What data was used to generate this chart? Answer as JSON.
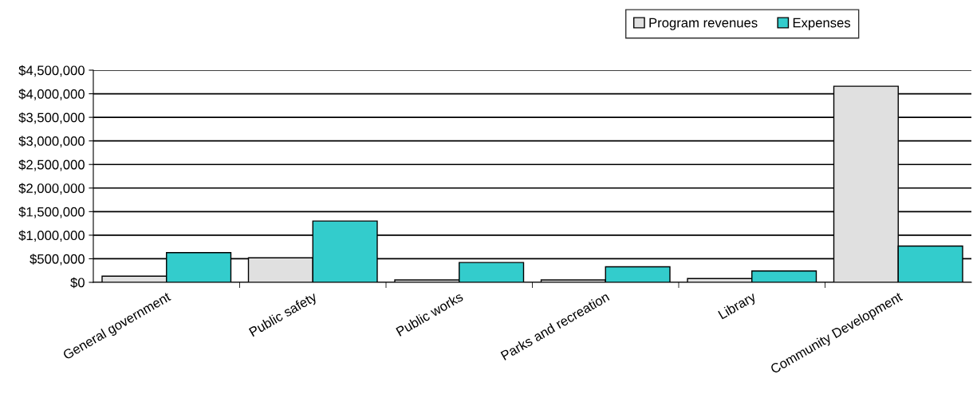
{
  "chart_data": {
    "type": "bar",
    "categories": [
      "General government",
      "Public safety",
      "Public works",
      "Parks and recreation",
      "Library",
      "Community Development"
    ],
    "series": [
      {
        "name": "Program revenues",
        "color": "#e0e0e0",
        "values": [
          130000,
          520000,
          50000,
          50000,
          80000,
          4160000
        ]
      },
      {
        "name": "Expenses",
        "color": "#33cccc",
        "values": [
          630000,
          1300000,
          420000,
          330000,
          240000,
          770000
        ]
      }
    ],
    "ylim": [
      0,
      4500000
    ],
    "yticks": [
      {
        "value": 0,
        "label": "$0"
      },
      {
        "value": 500000,
        "label": "$500,000"
      },
      {
        "value": 1000000,
        "label": "$1,000,000"
      },
      {
        "value": 1500000,
        "label": "$1,500,000"
      },
      {
        "value": 2000000,
        "label": "$2,000,000"
      },
      {
        "value": 2500000,
        "label": "$2,500,000"
      },
      {
        "value": 3000000,
        "label": "$3,000,000"
      },
      {
        "value": 3500000,
        "label": "$3,500,000"
      },
      {
        "value": 4000000,
        "label": "$4,000,000"
      },
      {
        "value": 4500000,
        "label": "$4,500,000"
      }
    ],
    "grid": "y",
    "legend": "top right"
  }
}
